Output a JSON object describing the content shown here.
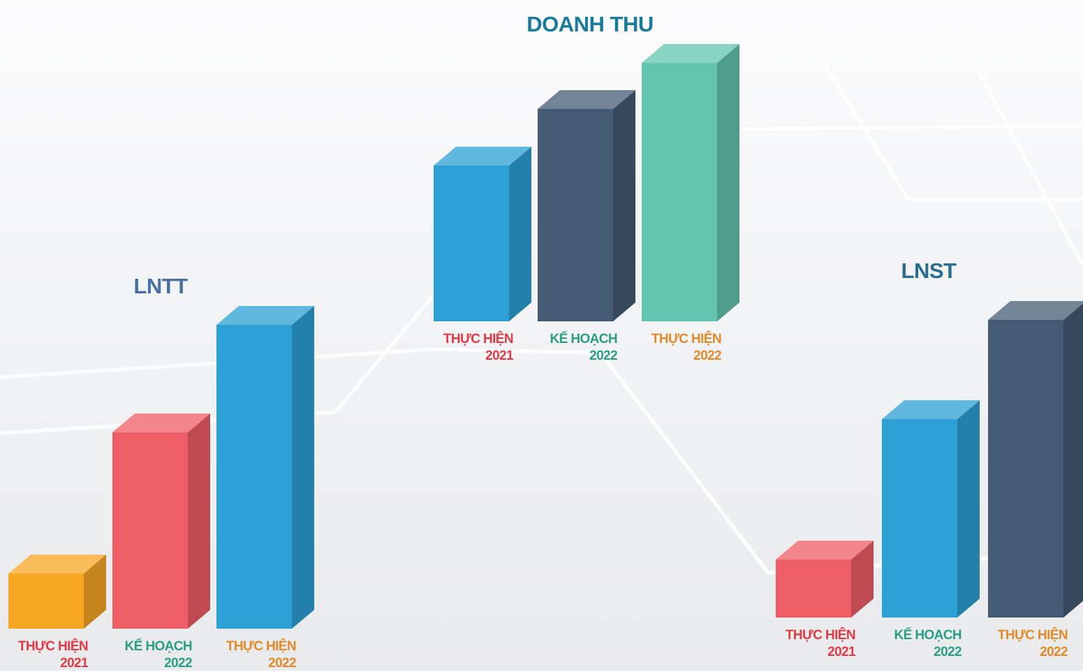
{
  "chart_data": [
    {
      "type": "bar",
      "title": "LNTT",
      "categories": [
        "THỰC HIỆN 2021",
        "KẾ HOẠCH 2022",
        "THỰC HIỆN 2022"
      ],
      "values": [
        79,
        281,
        435
      ],
      "colors": [
        "#f6a623",
        "#ef5d66",
        "#2ca0d4"
      ],
      "title_color": "#4a6fa5",
      "label_colors": [
        "#e03a45",
        "#2a9d84",
        "#e08a2a"
      ]
    },
    {
      "type": "bar",
      "title": "DOANH THU",
      "categories": [
        "THỰC HIỆN 2021",
        "KẾ HOẠCH 2022",
        "THỰC HIỆN 2022"
      ],
      "values": [
        223,
        304,
        370
      ],
      "colors": [
        "#2ca0d4",
        "#435b73",
        "#62c4ae"
      ],
      "title_color": "#1a7a99",
      "label_colors": [
        "#e03a45",
        "#2a9d84",
        "#e08a2a"
      ]
    },
    {
      "type": "bar",
      "title": "LNST",
      "categories": [
        "THỰC HIỆN 2021",
        "KẾ HOẠCH 2022",
        "THỰC HIỆN 2022"
      ],
      "values": [
        83,
        284,
        426
      ],
      "colors": [
        "#ef5d66",
        "#2ca0d4",
        "#435b73"
      ],
      "title_color": "#2a6e8e",
      "label_colors": [
        "#e03a45",
        "#2a9d84",
        "#e08a2a"
      ]
    }
  ]
}
